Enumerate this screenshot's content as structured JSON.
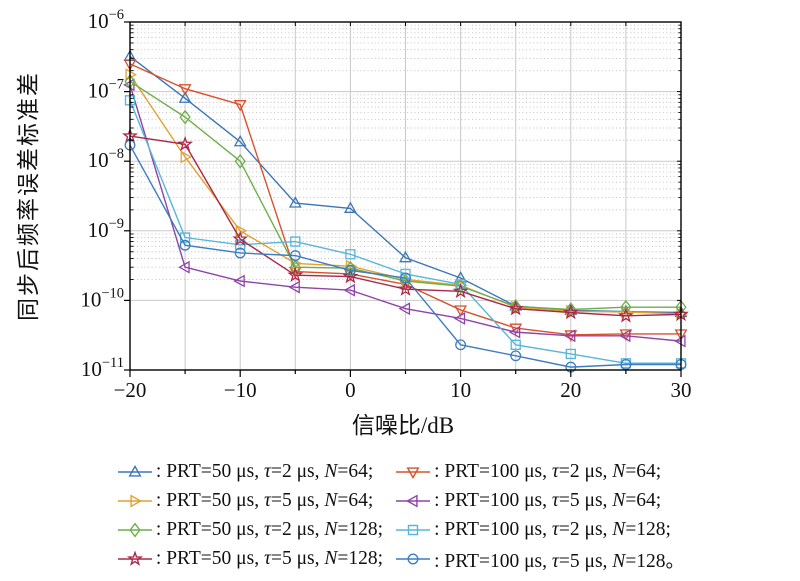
{
  "chart_data": {
    "type": "line",
    "title": "",
    "xlabel": "信噪比/dB",
    "ylabel": "同步后频率误差标准差",
    "xlim": [
      -20,
      30
    ],
    "x_major_tick_labels": [
      "−20",
      "−10",
      "0",
      "10",
      "20",
      "30"
    ],
    "x_major_tick_values": [
      -20,
      -10,
      0,
      10,
      20,
      30
    ],
    "x_grid_step_db": 5,
    "y_scale": "log",
    "y_tick_exponents": [
      -6,
      -7,
      -8,
      -9,
      -10,
      -11
    ],
    "grid": "major-solid, minor-dotted",
    "legend_position": "below, two columns",
    "x": [
      -20,
      -15,
      -10,
      -5,
      0,
      5,
      10,
      15,
      20,
      25,
      30
    ],
    "series": [
      {
        "name": "PRT=50 μs, τ=2 μs, N=64",
        "legend_label": "PRT=50 μs, τ=2 μs, N=64;",
        "marker": "triangle-up",
        "color": "#3d76b8",
        "values": [
          3.2e-07,
          8e-08,
          1.9e-08,
          2.5e-09,
          2.1e-09,
          4.1e-10,
          2.1e-10,
          8.3e-11,
          7.2e-11,
          6.9e-11,
          6.7e-11
        ]
      },
      {
        "name": "PRT=100 μs, τ=2 μs, N=64",
        "legend_label": "PRT=100 μs, τ=2 μs, N=64;",
        "marker": "triangle-down",
        "color": "#d9512c",
        "values": [
          2.5e-07,
          1.1e-07,
          6.5e-08,
          2.6e-10,
          2.4e-10,
          1.7e-10,
          7.3e-11,
          4e-11,
          3.2e-11,
          3.3e-11,
          3.3e-11
        ]
      },
      {
        "name": "PRT=50 μs, τ=5 μs, N=64",
        "legend_label": "PRT=50 μs, τ=5 μs, N=64;",
        "marker": "triangle-right",
        "color": "#e0a231",
        "values": [
          1.75e-07,
          1.15e-08,
          1e-09,
          3.4e-10,
          3.1e-10,
          2e-10,
          1.65e-10,
          8e-11,
          7e-11,
          6.8e-11,
          6.4e-11
        ]
      },
      {
        "name": "PRT=100 μs, τ=5 μs, N=64",
        "legend_label": "PRT=100 μs, τ=5 μs, N=64;",
        "marker": "triangle-left",
        "color": "#8e44a8",
        "values": [
          1.25e-07,
          3e-10,
          1.9e-10,
          1.55e-10,
          1.4e-10,
          7.6e-11,
          5.5e-11,
          3.5e-11,
          3.1e-11,
          3.1e-11,
          2.6e-11
        ]
      },
      {
        "name": "PRT=50 μs, τ=2 μs, N=128",
        "legend_label": "PRT=50 μs, τ=2 μs, N=128;",
        "marker": "diamond",
        "color": "#6fae4b",
        "values": [
          1.4e-07,
          4.3e-08,
          1e-08,
          3e-10,
          2.9e-10,
          1.9e-10,
          1.6e-10,
          8.2e-11,
          7.4e-11,
          8e-11,
          8e-11
        ]
      },
      {
        "name": "PRT=100 μs, τ=2 μs, N=128",
        "legend_label": "PRT=100 μs, τ=2 μs, N=128;",
        "marker": "square",
        "color": "#56b7d9",
        "values": [
          7.5e-08,
          8e-10,
          6.3e-10,
          7e-10,
          4.6e-10,
          2.4e-10,
          1.7e-10,
          2.3e-11,
          1.7e-11,
          1.25e-11,
          1.25e-11
        ]
      },
      {
        "name": "PRT=50 μs, τ=5 μs, N=128",
        "legend_label": "PRT=50 μs, τ=5 μs, N=128;",
        "marker": "star",
        "color": "#ab2747",
        "values": [
          2.3e-08,
          1.75e-08,
          7.6e-10,
          2.3e-10,
          2.2e-10,
          1.45e-10,
          1.35e-10,
          7.6e-11,
          6.7e-11,
          6e-11,
          6.3e-11
        ]
      },
      {
        "name": "PRT=100 μs, τ=5 μs, N=128",
        "legend_label": "PRT=100 μs, τ=5 μs, N=128。",
        "marker": "circle",
        "color": "#3d7dc1",
        "values": [
          1.7e-08,
          6.2e-10,
          4.8e-10,
          4.4e-10,
          2.7e-10,
          2.1e-10,
          2.3e-11,
          1.6e-11,
          1.1e-11,
          1.2e-11,
          1.2e-11
        ]
      }
    ],
    "legend_order_row_major": [
      0,
      1,
      2,
      3,
      4,
      5,
      6,
      7
    ]
  }
}
